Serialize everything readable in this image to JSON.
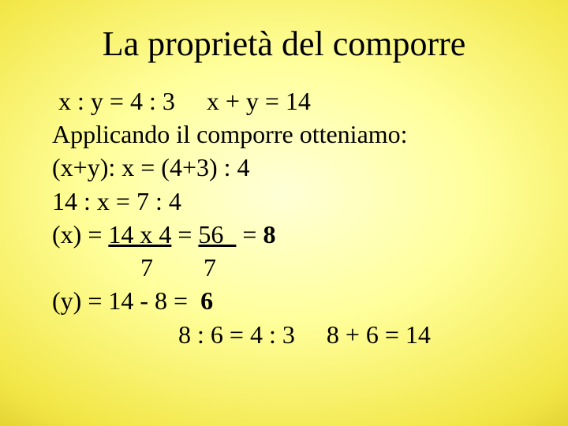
{
  "title": "La proprietà del comporre",
  "lines": {
    "l1a": " x : y = 4 : 3",
    "l1b": "x + y = 14",
    "l2": "Applicando il comporre otteniamo:",
    "l3": "(x+y): x = (4+3) : 4",
    "l4": "14 : x = 7 : 4",
    "l5_prefix": "(x) = ",
    "l5_num1": "14 x 4",
    "l5_mid": " = ",
    "l5_num2": "56  ",
    "l5_eq": " = ",
    "l5_res": "8",
    "l6": "              7        7",
    "l7_prefix": "(y) = 14 - 8 =  ",
    "l7_res": "6",
    "l8": "                    8 : 6 = 4 : 3     8 + 6 = 14"
  },
  "style": {
    "title_fontsize": 44,
    "body_fontsize": 32,
    "title_color": "#000000",
    "body_color": "#000000",
    "bg_gradient_inner": "#ffffd8",
    "bg_gradient_mid": "#ffff9c",
    "bg_gradient_outer": "#d4c020",
    "font_family": "Times New Roman"
  }
}
